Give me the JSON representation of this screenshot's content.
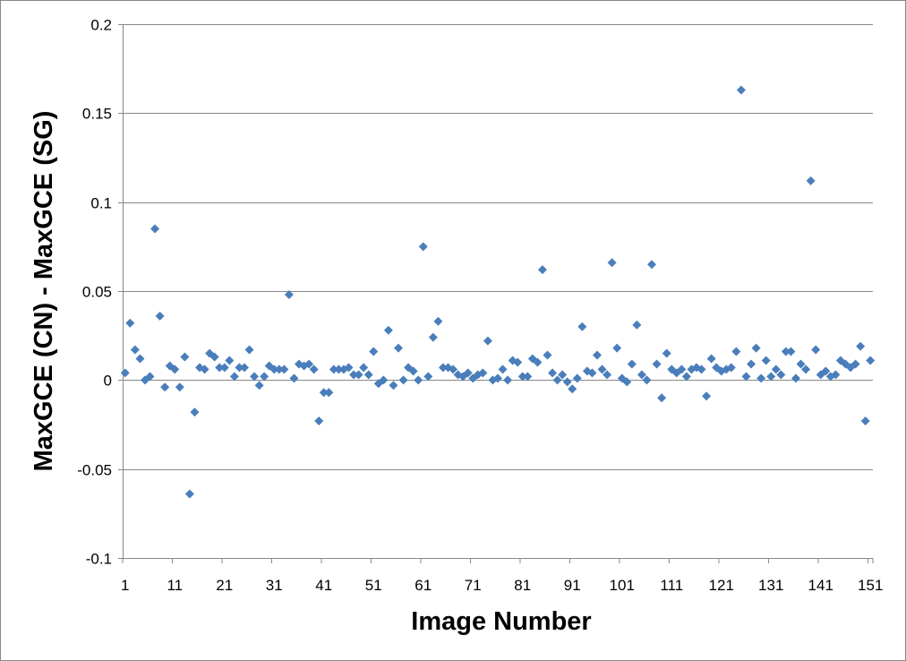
{
  "chart_data": {
    "type": "scatter",
    "title": "",
    "xlabel": "Image Number",
    "ylabel": "MaxGCE (CN) - MaxGCE (SG)",
    "xlim": [
      1,
      151
    ],
    "ylim": [
      -0.1,
      0.2
    ],
    "x_ticks": [
      1,
      11,
      21,
      31,
      41,
      51,
      61,
      71,
      81,
      91,
      101,
      111,
      121,
      131,
      141,
      151
    ],
    "x_tick_labels": [
      "1",
      "11",
      "21",
      "31",
      "41",
      "51",
      "61",
      "71",
      "81",
      "91",
      "101",
      "111",
      "121",
      "131",
      "141",
      "151"
    ],
    "y_ticks": [
      -0.1,
      -0.05,
      0,
      0.05,
      0.1,
      0.15,
      0.2
    ],
    "y_tick_labels": [
      "-0.1",
      "-0.05",
      "0",
      "0.05",
      "0.1",
      "0.15",
      "0.2"
    ],
    "grid": "horizontal",
    "marker": "diamond",
    "color": "#4a7ebb",
    "series": [
      {
        "x": [
          1,
          2,
          3,
          4,
          5,
          6,
          7,
          8,
          9,
          10,
          11,
          12,
          13,
          14,
          15,
          16,
          17,
          18,
          19,
          20,
          21,
          22,
          23,
          24,
          25,
          26,
          27,
          28,
          29,
          30,
          31,
          32,
          33,
          34,
          35,
          36,
          37,
          38,
          39,
          40,
          41,
          42,
          43,
          44,
          45,
          46,
          47,
          48,
          49,
          50,
          51,
          52,
          53,
          54,
          55,
          56,
          57,
          58,
          59,
          60,
          61,
          62,
          63,
          64,
          65,
          66,
          67,
          68,
          69,
          70,
          71,
          72,
          73,
          74,
          75,
          76,
          77,
          78,
          79,
          80,
          81,
          82,
          83,
          84,
          85,
          86,
          87,
          88,
          89,
          90,
          91,
          92,
          93,
          94,
          95,
          96,
          97,
          98,
          99,
          100,
          101,
          102,
          103,
          104,
          105,
          106,
          107,
          108,
          109,
          110,
          111,
          112,
          113,
          114,
          115,
          116,
          117,
          118,
          119,
          120,
          121,
          122,
          123,
          124,
          125,
          126,
          127,
          128,
          129,
          130,
          131,
          132,
          133,
          134,
          135,
          136,
          137,
          138,
          139,
          140,
          141,
          142,
          143,
          144,
          145,
          146,
          147,
          148,
          149,
          150,
          151
        ],
        "y": [
          0.004,
          0.032,
          0.017,
          0.012,
          0.0,
          0.002,
          0.085,
          0.036,
          -0.004,
          0.008,
          0.006,
          -0.004,
          0.013,
          -0.064,
          -0.018,
          0.007,
          0.006,
          0.015,
          0.013,
          0.007,
          0.007,
          0.011,
          0.002,
          0.007,
          0.007,
          0.017,
          0.002,
          -0.003,
          0.002,
          0.008,
          0.006,
          0.006,
          0.006,
          0.048,
          0.001,
          0.009,
          0.008,
          0.009,
          0.006,
          -0.023,
          -0.007,
          -0.007,
          0.006,
          0.006,
          0.006,
          0.007,
          0.003,
          0.003,
          0.007,
          0.003,
          0.016,
          -0.002,
          0.0,
          0.028,
          -0.003,
          0.018,
          0.0,
          0.007,
          0.005,
          0.0,
          0.075,
          0.002,
          0.024,
          0.033,
          0.007,
          0.007,
          0.006,
          0.003,
          0.002,
          0.004,
          0.001,
          0.003,
          0.004,
          0.022,
          0.0,
          0.001,
          0.006,
          0.0,
          0.011,
          0.01,
          0.002,
          0.002,
          0.012,
          0.01,
          0.062,
          0.014,
          0.004,
          0.0,
          0.003,
          -0.001,
          -0.005,
          0.001,
          0.03,
          0.005,
          0.004,
          0.014,
          0.006,
          0.003,
          0.066,
          0.018,
          0.001,
          -0.001,
          0.009,
          0.031,
          0.003,
          0.0,
          0.065,
          0.009,
          -0.01,
          0.015,
          0.006,
          0.004,
          0.006,
          0.002,
          0.006,
          0.007,
          0.006,
          -0.009,
          0.012,
          0.007,
          0.005,
          0.006,
          0.007,
          0.016,
          0.163,
          0.002,
          0.009,
          0.018,
          0.001,
          0.011,
          0.002,
          0.006,
          0.003,
          0.016,
          0.016,
          0.001,
          0.009,
          0.006,
          0.112,
          0.017,
          0.003,
          0.005,
          0.002,
          0.003,
          0.011,
          0.009,
          0.007,
          0.009,
          0.019,
          -0.023,
          0.011
        ]
      }
    ]
  }
}
